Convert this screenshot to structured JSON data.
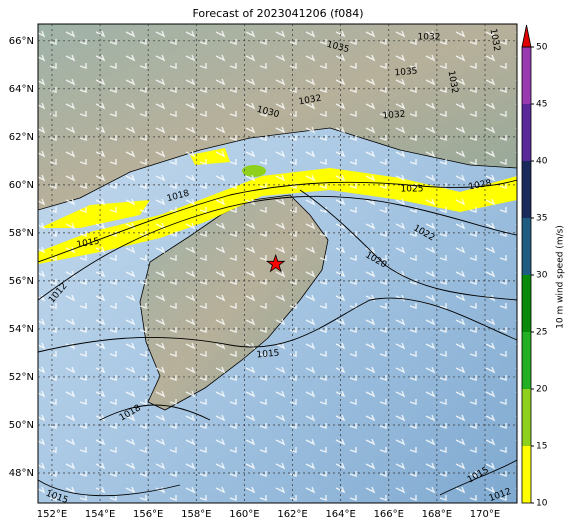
{
  "map": {
    "title": "Forecast of 2023041206 (f084)",
    "lonlim": [
      151.42,
      171.33
    ],
    "latlim": [
      46.75,
      66.7
    ],
    "lonticks": [
      {
        "value": 152,
        "label": "152°E"
      },
      {
        "value": 154,
        "label": "154°E"
      },
      {
        "value": 156,
        "label": "156°E"
      },
      {
        "value": 158,
        "label": "158°E"
      },
      {
        "value": 160,
        "label": "160°E"
      },
      {
        "value": 162,
        "label": "162°E"
      },
      {
        "value": 164,
        "label": "164°E"
      },
      {
        "value": 166,
        "label": "166°E"
      },
      {
        "value": 168,
        "label": "168°E"
      },
      {
        "value": 170,
        "label": "170°E"
      }
    ],
    "latticks": [
      {
        "value": 48,
        "label": "48°N"
      },
      {
        "value": 50,
        "label": "50°N"
      },
      {
        "value": 52,
        "label": "52°N"
      },
      {
        "value": 54,
        "label": "54°N"
      },
      {
        "value": 56,
        "label": "56°N"
      },
      {
        "value": 58,
        "label": "58°N"
      },
      {
        "value": 60,
        "label": "60°N"
      },
      {
        "value": 62,
        "label": "62°N"
      },
      {
        "value": 64,
        "label": "64°N"
      },
      {
        "value": 66,
        "label": "66°N"
      }
    ],
    "marker": {
      "lon": 161.3,
      "lat": 56.7,
      "color": "#ff0000"
    },
    "isobar_labels": [
      1035,
      1032,
      1032,
      1035,
      1032,
      1032,
      1030,
      1032,
      1025,
      1028,
      1018,
      1022,
      1015,
      1020,
      1012,
      1015,
      1018,
      1015,
      1015,
      1012
    ],
    "colorbar": {
      "label": "10 m wind speed (m/s)",
      "lim": [
        10,
        50
      ],
      "ticks": [
        10,
        15,
        20,
        25,
        30,
        35,
        40,
        45,
        50
      ],
      "colors": [
        "#ffff00",
        "#8ed01c",
        "#22b022",
        "#0a8a0a",
        "#1f5c82",
        "#1a2a5a",
        "#5a2a9a",
        "#9a3ab0"
      ],
      "extend_color": "#e00000"
    }
  }
}
